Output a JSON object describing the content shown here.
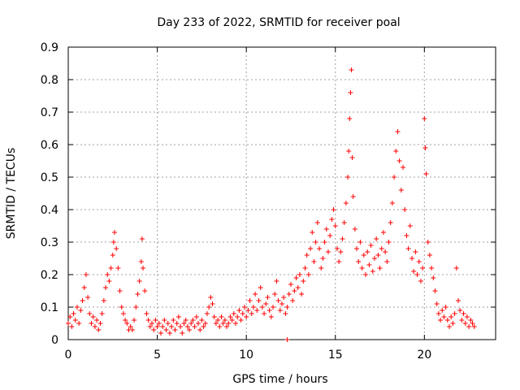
{
  "chart_data": {
    "type": "scatter",
    "title": "Day 233 of 2022, SRMTID for receiver poal",
    "xlabel": "GPS time / hours",
    "ylabel": "SRMTID / TECUs",
    "xlim": [
      0,
      24
    ],
    "ylim": [
      0,
      0.9
    ],
    "xticks": [
      0,
      5,
      10,
      15,
      20
    ],
    "xtick_labels": [
      "0",
      "5",
      "10",
      "15",
      "20"
    ],
    "yticks": [
      0,
      0.1,
      0.2,
      0.3,
      0.4,
      0.5,
      0.6,
      0.7,
      0.8,
      0.9
    ],
    "ytick_labels": [
      "0",
      "0.1",
      "0.2",
      "0.3",
      "0.4",
      "0.5",
      "0.6",
      "0.7",
      "0.8",
      "0.9"
    ],
    "grid": true,
    "marker": "plus",
    "color": "#ff0000",
    "series": [
      {
        "name": "SRMTID",
        "points": [
          [
            0.0,
            0.05
          ],
          [
            0.1,
            0.07
          ],
          [
            0.2,
            0.04
          ],
          [
            0.3,
            0.08
          ],
          [
            0.4,
            0.06
          ],
          [
            0.5,
            0.1
          ],
          [
            0.6,
            0.05
          ],
          [
            0.7,
            0.09
          ],
          [
            0.8,
            0.12
          ],
          [
            0.9,
            0.16
          ],
          [
            1.0,
            0.2
          ],
          [
            1.1,
            0.13
          ],
          [
            1.2,
            0.08
          ],
          [
            1.3,
            0.05
          ],
          [
            1.4,
            0.07
          ],
          [
            1.5,
            0.04
          ],
          [
            1.6,
            0.06
          ],
          [
            1.7,
            0.03
          ],
          [
            1.8,
            0.05
          ],
          [
            1.9,
            0.08
          ],
          [
            2.0,
            0.12
          ],
          [
            2.1,
            0.16
          ],
          [
            2.2,
            0.2
          ],
          [
            2.3,
            0.18
          ],
          [
            2.4,
            0.22
          ],
          [
            2.5,
            0.26
          ],
          [
            2.55,
            0.3
          ],
          [
            2.6,
            0.33
          ],
          [
            2.7,
            0.28
          ],
          [
            2.8,
            0.22
          ],
          [
            2.9,
            0.15
          ],
          [
            3.0,
            0.1
          ],
          [
            3.1,
            0.08
          ],
          [
            3.2,
            0.06
          ],
          [
            3.3,
            0.05
          ],
          [
            3.4,
            0.03
          ],
          [
            3.5,
            0.04
          ],
          [
            3.6,
            0.03
          ],
          [
            3.7,
            0.06
          ],
          [
            3.8,
            0.1
          ],
          [
            3.9,
            0.14
          ],
          [
            4.0,
            0.18
          ],
          [
            4.1,
            0.24
          ],
          [
            4.15,
            0.31
          ],
          [
            4.2,
            0.22
          ],
          [
            4.3,
            0.15
          ],
          [
            4.4,
            0.08
          ],
          [
            4.5,
            0.06
          ],
          [
            4.6,
            0.04
          ],
          [
            4.7,
            0.05
          ],
          [
            4.8,
            0.03
          ],
          [
            4.9,
            0.06
          ],
          [
            5.0,
            0.04
          ],
          [
            5.1,
            0.05
          ],
          [
            5.2,
            0.02
          ],
          [
            5.3,
            0.04
          ],
          [
            5.4,
            0.06
          ],
          [
            5.5,
            0.03
          ],
          [
            5.6,
            0.05
          ],
          [
            5.7,
            0.02
          ],
          [
            5.8,
            0.04
          ],
          [
            5.9,
            0.06
          ],
          [
            6.0,
            0.03
          ],
          [
            6.1,
            0.05
          ],
          [
            6.2,
            0.07
          ],
          [
            6.3,
            0.04
          ],
          [
            6.4,
            0.02
          ],
          [
            6.5,
            0.05
          ],
          [
            6.6,
            0.06
          ],
          [
            6.7,
            0.04
          ],
          [
            6.8,
            0.03
          ],
          [
            6.9,
            0.05
          ],
          [
            7.0,
            0.06
          ],
          [
            7.1,
            0.04
          ],
          [
            7.2,
            0.07
          ],
          [
            7.3,
            0.05
          ],
          [
            7.4,
            0.03
          ],
          [
            7.5,
            0.06
          ],
          [
            7.6,
            0.04
          ],
          [
            7.7,
            0.05
          ],
          [
            7.8,
            0.08
          ],
          [
            7.9,
            0.1
          ],
          [
            8.0,
            0.13
          ],
          [
            8.1,
            0.11
          ],
          [
            8.2,
            0.07
          ],
          [
            8.3,
            0.05
          ],
          [
            8.4,
            0.06
          ],
          [
            8.5,
            0.04
          ],
          [
            8.6,
            0.07
          ],
          [
            8.7,
            0.05
          ],
          [
            8.8,
            0.06
          ],
          [
            8.9,
            0.04
          ],
          [
            9.0,
            0.05
          ],
          [
            9.1,
            0.07
          ],
          [
            9.2,
            0.06
          ],
          [
            9.3,
            0.08
          ],
          [
            9.4,
            0.05
          ],
          [
            9.5,
            0.07
          ],
          [
            9.6,
            0.09
          ],
          [
            9.7,
            0.06
          ],
          [
            9.8,
            0.08
          ],
          [
            9.9,
            0.1
          ],
          [
            10.0,
            0.07
          ],
          [
            10.1,
            0.09
          ],
          [
            10.2,
            0.12
          ],
          [
            10.3,
            0.08
          ],
          [
            10.4,
            0.1
          ],
          [
            10.5,
            0.14
          ],
          [
            10.6,
            0.09
          ],
          [
            10.7,
            0.12
          ],
          [
            10.8,
            0.16
          ],
          [
            10.9,
            0.1
          ],
          [
            11.0,
            0.08
          ],
          [
            11.1,
            0.11
          ],
          [
            11.2,
            0.13
          ],
          [
            11.3,
            0.09
          ],
          [
            11.4,
            0.07
          ],
          [
            11.5,
            0.1
          ],
          [
            11.6,
            0.14
          ],
          [
            11.7,
            0.18
          ],
          [
            11.8,
            0.12
          ],
          [
            11.9,
            0.09
          ],
          [
            12.0,
            0.11
          ],
          [
            12.1,
            0.13
          ],
          [
            12.2,
            0.08
          ],
          [
            12.3,
            0.1
          ],
          [
            12.4,
            0.14
          ],
          [
            12.5,
            0.17
          ],
          [
            12.6,
            0.12
          ],
          [
            12.7,
            0.15
          ],
          [
            12.8,
            0.19
          ],
          [
            12.9,
            0.16
          ],
          [
            13.0,
            0.2
          ],
          [
            13.1,
            0.14
          ],
          [
            13.2,
            0.18
          ],
          [
            13.3,
            0.22
          ],
          [
            13.4,
            0.26
          ],
          [
            13.5,
            0.2
          ],
          [
            13.6,
            0.28
          ],
          [
            13.7,
            0.33
          ],
          [
            13.8,
            0.24
          ],
          [
            13.9,
            0.3
          ],
          [
            14.0,
            0.36
          ],
          [
            14.1,
            0.28
          ],
          [
            14.2,
            0.22
          ],
          [
            14.3,
            0.25
          ],
          [
            14.4,
            0.3
          ],
          [
            14.5,
            0.34
          ],
          [
            14.6,
            0.27
          ],
          [
            14.7,
            0.32
          ],
          [
            14.8,
            0.37
          ],
          [
            14.9,
            0.4
          ],
          [
            15.0,
            0.35
          ],
          [
            15.1,
            0.28
          ],
          [
            15.2,
            0.24
          ],
          [
            15.3,
            0.27
          ],
          [
            15.4,
            0.31
          ],
          [
            15.5,
            0.36
          ],
          [
            15.6,
            0.42
          ],
          [
            15.7,
            0.5
          ],
          [
            15.75,
            0.58
          ],
          [
            15.8,
            0.68
          ],
          [
            15.85,
            0.76
          ],
          [
            15.9,
            0.83
          ],
          [
            15.95,
            0.56
          ],
          [
            16.0,
            0.44
          ],
          [
            16.1,
            0.34
          ],
          [
            16.2,
            0.28
          ],
          [
            16.3,
            0.24
          ],
          [
            16.4,
            0.3
          ],
          [
            16.5,
            0.22
          ],
          [
            16.6,
            0.26
          ],
          [
            16.7,
            0.2
          ],
          [
            16.8,
            0.27
          ],
          [
            16.9,
            0.23
          ],
          [
            17.0,
            0.29
          ],
          [
            17.1,
            0.21
          ],
          [
            17.2,
            0.25
          ],
          [
            17.3,
            0.31
          ],
          [
            17.4,
            0.26
          ],
          [
            17.5,
            0.22
          ],
          [
            17.6,
            0.28
          ],
          [
            17.7,
            0.33
          ],
          [
            17.8,
            0.27
          ],
          [
            17.9,
            0.24
          ],
          [
            18.0,
            0.3
          ],
          [
            18.1,
            0.36
          ],
          [
            18.2,
            0.42
          ],
          [
            18.3,
            0.5
          ],
          [
            18.4,
            0.58
          ],
          [
            18.5,
            0.64
          ],
          [
            18.6,
            0.55
          ],
          [
            18.7,
            0.46
          ],
          [
            18.8,
            0.53
          ],
          [
            18.9,
            0.4
          ],
          [
            19.0,
            0.32
          ],
          [
            19.1,
            0.28
          ],
          [
            19.2,
            0.35
          ],
          [
            19.3,
            0.25
          ],
          [
            19.4,
            0.21
          ],
          [
            19.5,
            0.27
          ],
          [
            19.6,
            0.2
          ],
          [
            19.7,
            0.24
          ],
          [
            19.8,
            0.18
          ],
          [
            19.9,
            0.22
          ],
          [
            20.0,
            0.68
          ],
          [
            20.05,
            0.59
          ],
          [
            20.1,
            0.51
          ],
          [
            20.2,
            0.3
          ],
          [
            20.3,
            0.26
          ],
          [
            20.4,
            0.22
          ],
          [
            20.5,
            0.19
          ],
          [
            20.6,
            0.15
          ],
          [
            20.7,
            0.11
          ],
          [
            20.8,
            0.08
          ],
          [
            20.9,
            0.06
          ],
          [
            21.0,
            0.09
          ],
          [
            21.1,
            0.07
          ],
          [
            21.2,
            0.1
          ],
          [
            21.3,
            0.06
          ],
          [
            21.4,
            0.04
          ],
          [
            21.5,
            0.07
          ],
          [
            21.6,
            0.05
          ],
          [
            21.7,
            0.08
          ],
          [
            21.8,
            0.22
          ],
          [
            21.9,
            0.12
          ],
          [
            22.0,
            0.09
          ],
          [
            22.1,
            0.06
          ],
          [
            22.2,
            0.08
          ],
          [
            22.3,
            0.05
          ],
          [
            22.4,
            0.07
          ],
          [
            22.5,
            0.04
          ],
          [
            22.6,
            0.06
          ],
          [
            22.7,
            0.05
          ],
          [
            22.8,
            0.04
          ],
          [
            12.3,
            0.0
          ]
        ]
      }
    ]
  }
}
